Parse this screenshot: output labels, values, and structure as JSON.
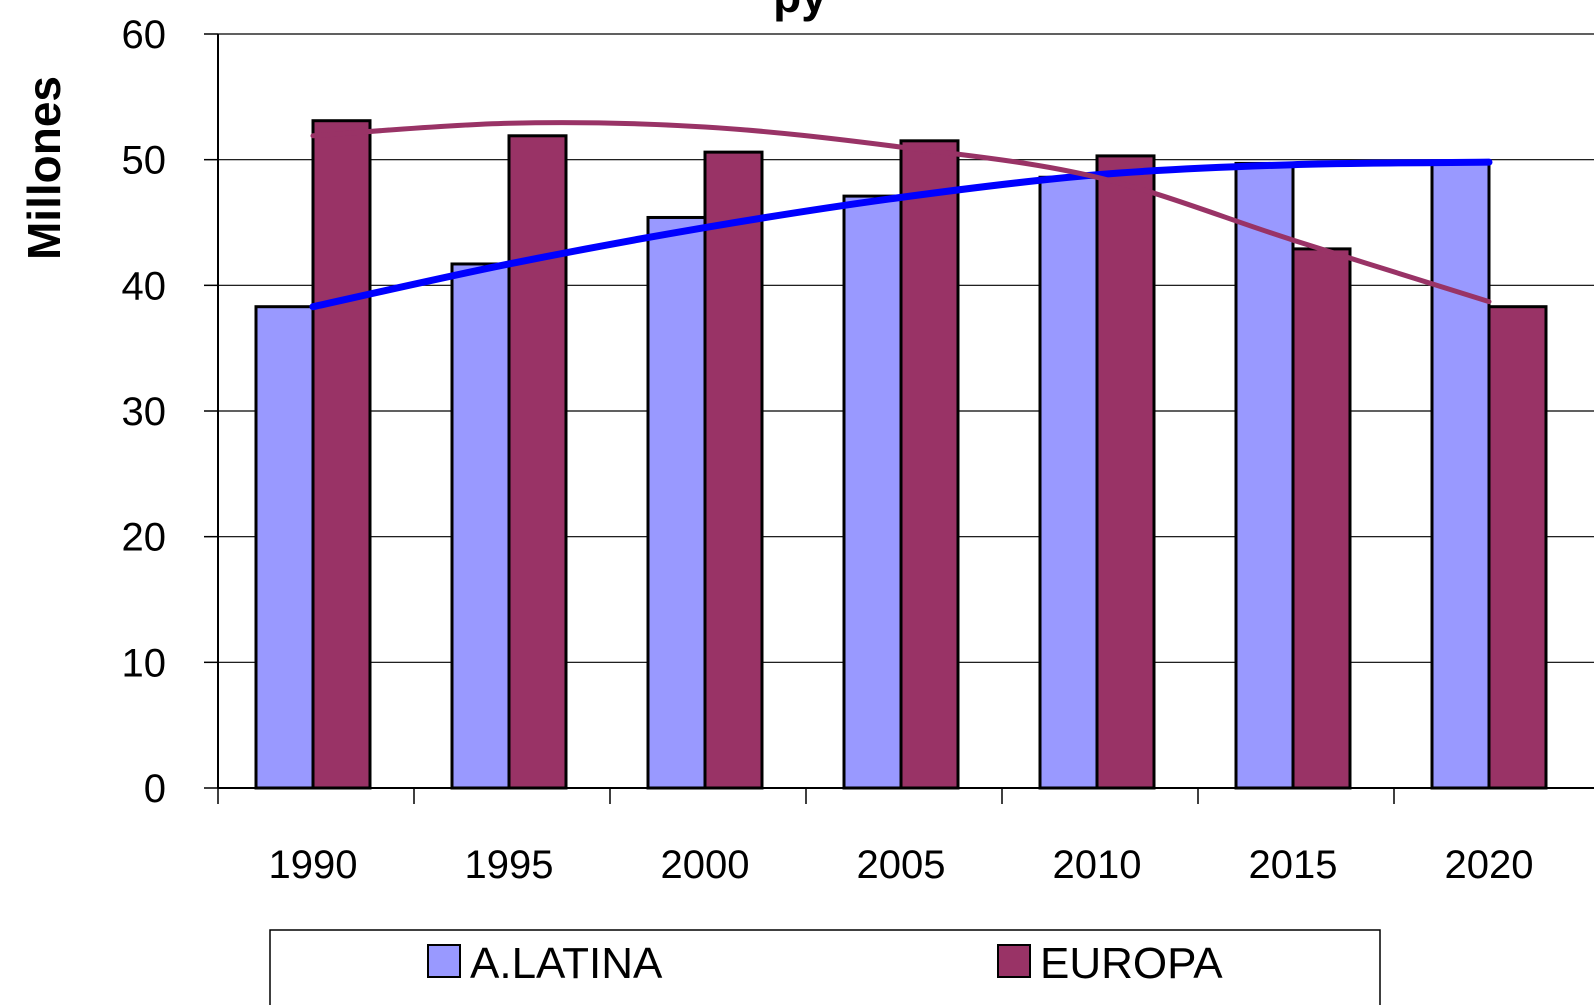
{
  "chart_data": {
    "type": "bar",
    "title_fragment": "py",
    "ylabel": "Millones",
    "xlabel": "",
    "ylim": [
      0,
      60
    ],
    "yticks": [
      0,
      10,
      20,
      30,
      40,
      50,
      60
    ],
    "categories": [
      "1990",
      "1995",
      "2000",
      "2005",
      "2010",
      "2015",
      "2020"
    ],
    "series": [
      {
        "name": "A.LATINA",
        "color": "#9999ff",
        "values": [
          38.3,
          41.7,
          45.4,
          47.1,
          48.6,
          49.7,
          49.9
        ]
      },
      {
        "name": "EUROPA",
        "color": "#993366",
        "values": [
          53.1,
          51.9,
          50.6,
          51.5,
          50.3,
          42.9,
          38.3
        ]
      }
    ],
    "trend_lines": [
      {
        "series": "A.LATINA",
        "color": "#0000ff",
        "values": [
          38.3,
          41.7,
          44.6,
          47.0,
          48.8,
          49.6,
          49.8
        ]
      },
      {
        "series": "EUROPA",
        "color": "#993366",
        "values": [
          51.9,
          52.9,
          52.6,
          51.0,
          48.6,
          43.6,
          38.7
        ]
      }
    ],
    "grid": true,
    "legend_position": "bottom"
  }
}
